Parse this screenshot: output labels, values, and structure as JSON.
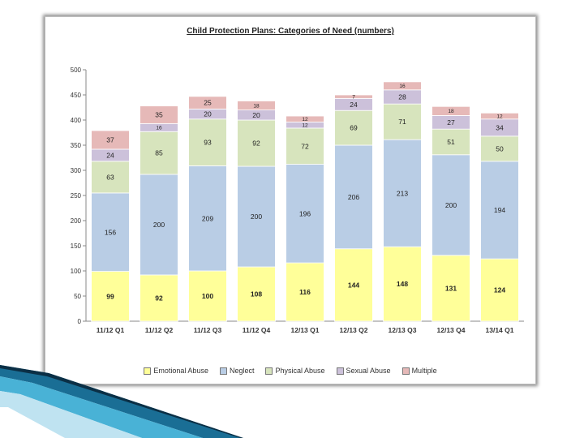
{
  "chart_data": {
    "type": "bar",
    "stacked": true,
    "title": "Child Protection Plans: Categories of Need (numbers)",
    "xlabel": "",
    "ylabel": "",
    "ylim": [
      0,
      500
    ],
    "yticks": [
      0,
      50,
      100,
      150,
      200,
      250,
      300,
      350,
      400,
      450,
      500
    ],
    "grid": false,
    "legend_position": "bottom",
    "categories": [
      "11/12 Q1",
      "11/12 Q2",
      "11/12 Q3",
      "11/12 Q4",
      "12/13 Q1",
      "12/13 Q2",
      "12/13 Q3",
      "12/13 Q4",
      "13/14 Q1"
    ],
    "series": [
      {
        "name": "Emotional Abuse",
        "color": "#ffff99",
        "values": [
          99,
          92,
          100,
          108,
          116,
          144,
          148,
          131,
          124
        ]
      },
      {
        "name": "Neglect",
        "color": "#b9cde5",
        "values": [
          156,
          200,
          209,
          200,
          196,
          206,
          213,
          200,
          194
        ]
      },
      {
        "name": "Physical Abuse",
        "color": "#d7e4bd",
        "values": [
          63,
          85,
          93,
          92,
          72,
          69,
          71,
          51,
          50
        ]
      },
      {
        "name": "Sexual Abuse",
        "color": "#ccc1da",
        "values": [
          24,
          16,
          20,
          20,
          12,
          24,
          28,
          27,
          34
        ]
      },
      {
        "name": "Multiple",
        "color": "#e6b9b8",
        "values": [
          37,
          35,
          25,
          18,
          12,
          7,
          16,
          18,
          12
        ]
      }
    ]
  }
}
